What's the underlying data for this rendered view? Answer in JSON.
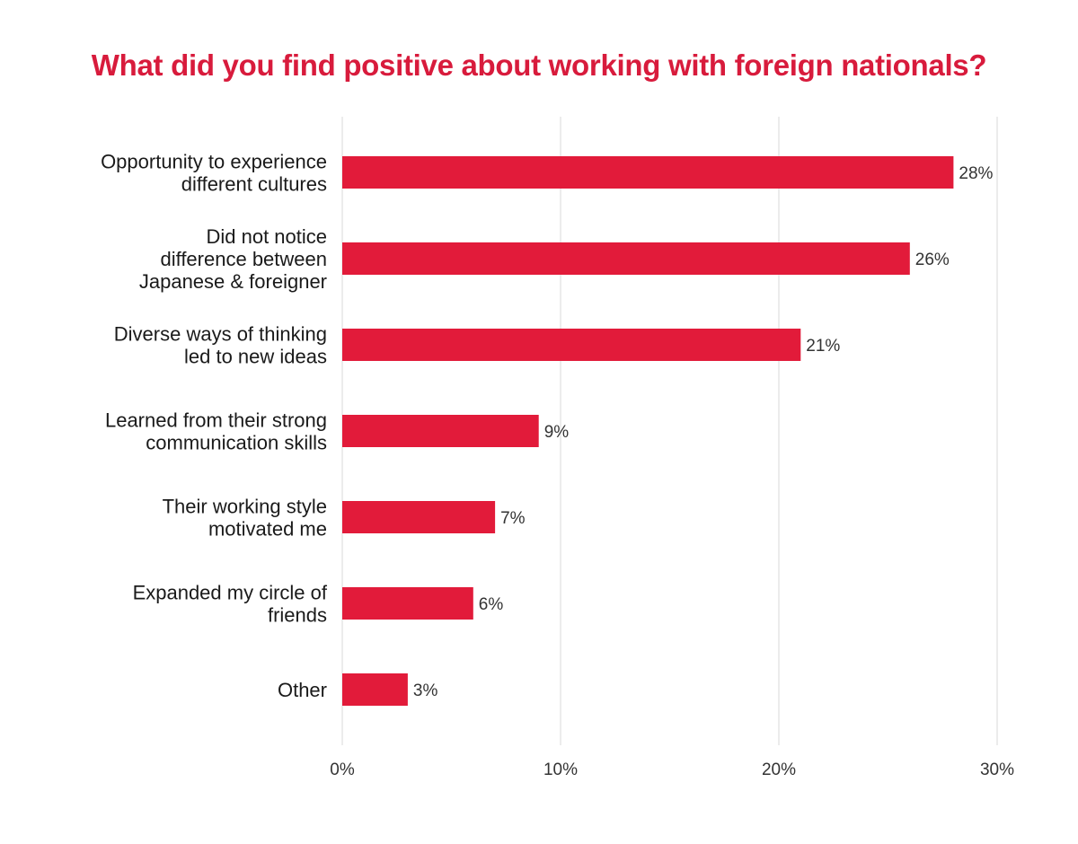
{
  "colors": {
    "bar": "#e21b3a",
    "title": "#d81b3c",
    "grid": "#d9d9d9",
    "text": "#1a1a1a"
  },
  "chart_data": {
    "type": "bar",
    "orientation": "horizontal",
    "title": "What did you find positive about working with foreign nationals?",
    "categories": [
      [
        "Opportunity to experience",
        "different cultures"
      ],
      [
        "Did not notice",
        "difference between",
        "Japanese & foreigner"
      ],
      [
        "Diverse ways of thinking",
        "led to new ideas"
      ],
      [
        "Learned from their strong",
        "communication skills"
      ],
      [
        "Their working style",
        "motivated me"
      ],
      [
        "Expanded my circle of",
        "friends"
      ],
      [
        "Other"
      ]
    ],
    "values": [
      28,
      26,
      21,
      9,
      7,
      6,
      3
    ],
    "value_labels": [
      "28%",
      "26%",
      "21%",
      "9%",
      "7%",
      "6%",
      "3%"
    ],
    "xlim": [
      0,
      30
    ],
    "xticks": [
      0,
      10,
      20,
      30
    ],
    "xtick_labels": [
      "0%",
      "10%",
      "20%",
      "30%"
    ],
    "xlabel": "",
    "ylabel": "",
    "grid": "vertical",
    "legend": "none"
  }
}
